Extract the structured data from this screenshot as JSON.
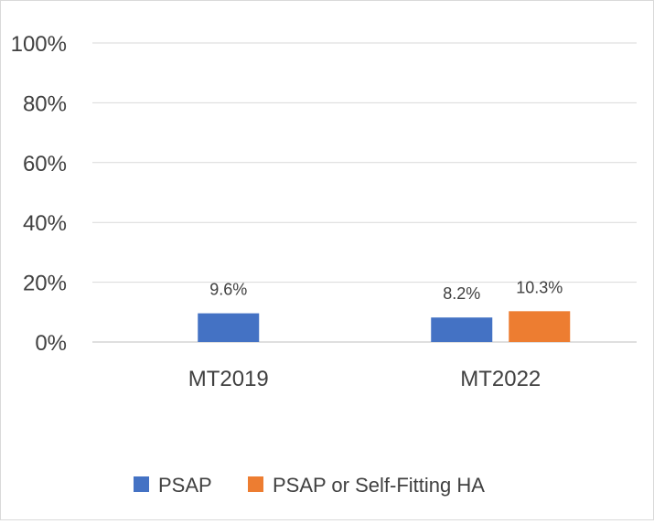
{
  "chart_data": {
    "type": "bar",
    "categories": [
      "MT2019",
      "MT2022"
    ],
    "series": [
      {
        "name": "PSAP",
        "color": "#4472C4",
        "values": [
          9.6,
          8.2
        ],
        "labels": [
          "9.6%",
          "8.2%"
        ]
      },
      {
        "name": "PSAP or Self-Fitting HA",
        "color": "#ED7D31",
        "values": [
          null,
          10.3
        ],
        "labels": [
          null,
          "10.3%"
        ]
      }
    ],
    "yticks": [
      "0%",
      "20%",
      "40%",
      "60%",
      "80%",
      "100%"
    ],
    "ylim": [
      0,
      100
    ],
    "grid": true,
    "legend_position": "bottom"
  }
}
